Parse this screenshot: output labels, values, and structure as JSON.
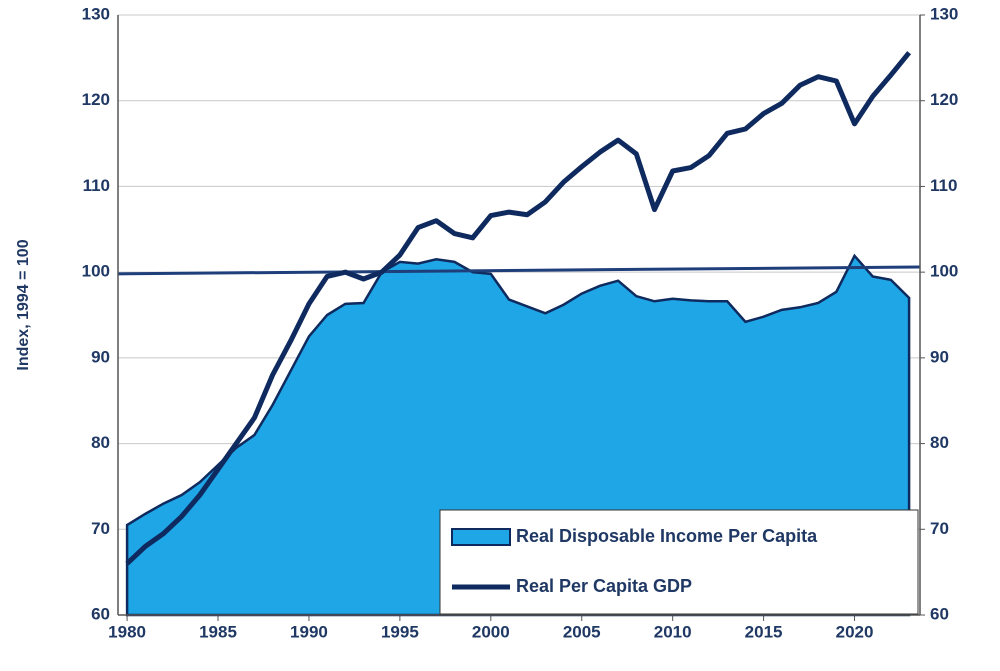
{
  "chart_data": {
    "type": "area_line",
    "y_label": "Index, 1994 = 100",
    "x": [
      1980,
      1981,
      1982,
      1983,
      1984,
      1985,
      1986,
      1987,
      1988,
      1989,
      1990,
      1991,
      1992,
      1993,
      1994,
      1995,
      1996,
      1997,
      1998,
      1999,
      2000,
      2001,
      2002,
      2003,
      2004,
      2005,
      2006,
      2007,
      2008,
      2009,
      2010,
      2011,
      2012,
      2013,
      2014,
      2015,
      2016,
      2017,
      2018,
      2019,
      2020,
      2021,
      2022,
      2023
    ],
    "series": [
      {
        "name": "Real Disposable Income Per Capita",
        "type": "area",
        "color": "#1ea6e6",
        "values": [
          70.5,
          71.8,
          73,
          74,
          75.5,
          77.5,
          79.5,
          81,
          84.5,
          88.5,
          92.5,
          95,
          96.3,
          96.4,
          100,
          101.2,
          101,
          101.5,
          101.2,
          100,
          99.8,
          96.8,
          96,
          95.2,
          96.2,
          97.5,
          98.4,
          99,
          97.2,
          96.6,
          96.9,
          96.7,
          96.6,
          96.6,
          94.2,
          94.8,
          95.6,
          95.9,
          96.4,
          97.7,
          101.9,
          99.5,
          99.1,
          97
        ]
      },
      {
        "name": "Real Per Capita GDP",
        "type": "line",
        "color": "#0f2a5e",
        "values": [
          66,
          68,
          69.5,
          71.5,
          74,
          77,
          80,
          83,
          88,
          92,
          96.3,
          99.5,
          100,
          99.2,
          100,
          102,
          105.2,
          106,
          104.5,
          104,
          106.6,
          107,
          106.7,
          108.2,
          110.5,
          112.3,
          114,
          115.4,
          113.8,
          107.3,
          111.8,
          112.2,
          113.6,
          116.2,
          116.7,
          118.5,
          119.7,
          121.8,
          122.8,
          122.3,
          117.3,
          120.5,
          123,
          125.6
        ]
      }
    ],
    "trend_line": {
      "x": [
        1979.5,
        2023.6
      ],
      "values": [
        99.8,
        100.6
      ],
      "color": "#1f3f7a"
    },
    "xlim": [
      1979.5,
      2023.6
    ],
    "xticks": [
      1980,
      1985,
      1990,
      1995,
      2000,
      2005,
      2010,
      2015,
      2020
    ],
    "ylim": [
      60,
      130
    ],
    "yticks": [
      60,
      70,
      80,
      90,
      100,
      110,
      120,
      130
    ],
    "y2lim": [
      60,
      130
    ],
    "y2ticks": [
      60,
      70,
      80,
      90,
      100,
      110,
      120,
      130
    ],
    "grid": true,
    "legend": "lower right"
  }
}
